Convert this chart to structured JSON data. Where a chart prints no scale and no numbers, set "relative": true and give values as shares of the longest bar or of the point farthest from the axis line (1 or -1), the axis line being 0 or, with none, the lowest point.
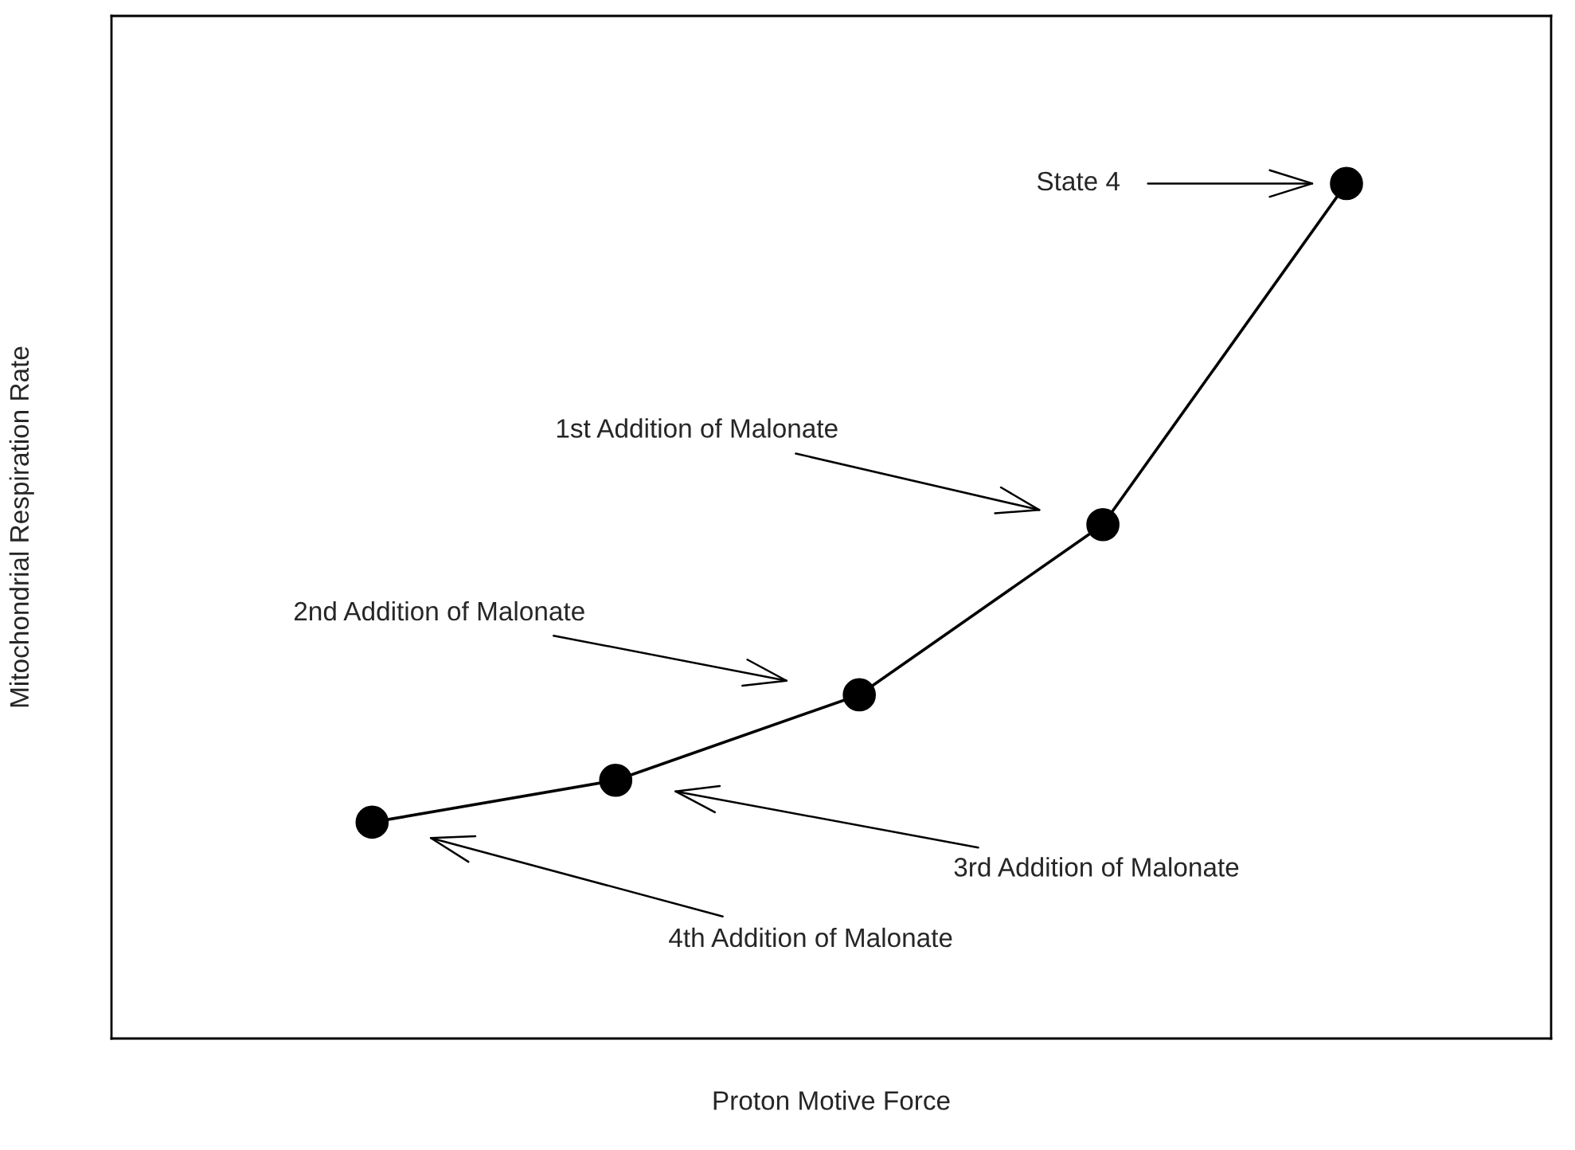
{
  "chart_data": {
    "type": "line",
    "relative": true,
    "xlabel": "Proton Motive Force",
    "ylabel": "Mitochondrial Respiration Rate",
    "categories": [
      null,
      null,
      null,
      null,
      null
    ],
    "series": [
      {
        "color": "#000000",
        "values": [
          0.253,
          0.302,
          0.402,
          0.601,
          1.0
        ]
      }
    ],
    "marker": "circle",
    "line_style": "solid",
    "grid": false,
    "legend": false,
    "annotations": [
      "State 4",
      "1st Addition of Malonate",
      "2nd Addition of Malonate",
      "3rd Addition of Malonate",
      "4th Addition of Malonate"
    ]
  }
}
